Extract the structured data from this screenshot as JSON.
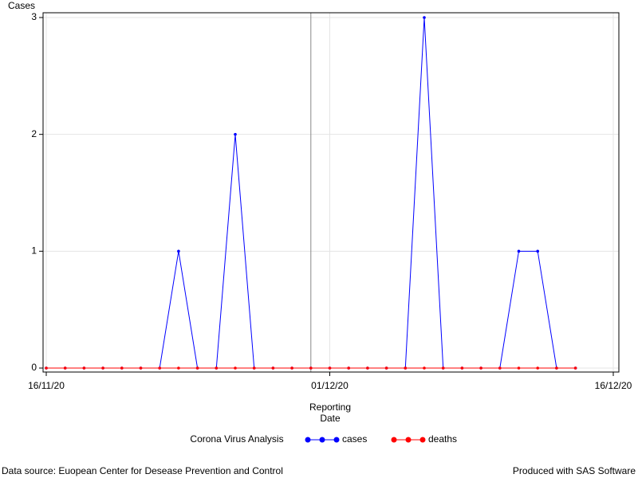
{
  "chart_data": {
    "type": "line",
    "y_label": "Cases",
    "x_label": [
      "Reporting",
      "Date"
    ],
    "x": [
      "16/11/20",
      "17/11/20",
      "18/11/20",
      "19/11/20",
      "20/11/20",
      "21/11/20",
      "22/11/20",
      "23/11/20",
      "24/11/20",
      "25/11/20",
      "26/11/20",
      "27/11/20",
      "28/11/20",
      "29/11/20",
      "30/11/20",
      "01/12/20",
      "02/12/20",
      "03/12/20",
      "04/12/20",
      "05/12/20",
      "06/12/20",
      "07/12/20",
      "08/12/20",
      "09/12/20",
      "10/12/20",
      "11/12/20",
      "12/12/20",
      "13/12/20",
      "14/12/20"
    ],
    "series": [
      {
        "name": "cases",
        "color": "#0000ff",
        "values": [
          0,
          0,
          0,
          0,
          0,
          0,
          0,
          1,
          0,
          0,
          2,
          0,
          0,
          0,
          0,
          0,
          0,
          0,
          0,
          0,
          3,
          0,
          0,
          0,
          0,
          1,
          1,
          0,
          0
        ]
      },
      {
        "name": "deaths",
        "color": "#ff0000",
        "values": [
          0,
          0,
          0,
          0,
          0,
          0,
          0,
          0,
          0,
          0,
          0,
          0,
          0,
          0,
          0,
          0,
          0,
          0,
          0,
          0,
          0,
          0,
          0,
          0,
          0,
          0,
          0,
          0,
          0
        ]
      }
    ],
    "xlim": [
      "16/11/20",
      "16/12/20"
    ],
    "xticks": [
      "16/11/20",
      "01/12/20",
      "16/12/20"
    ],
    "ylim": [
      0,
      3
    ],
    "yticks": [
      0,
      1,
      2,
      3
    ],
    "reference_x": "30/11/20",
    "grid": true,
    "legend_title": "Corona Virus Analysis",
    "footnote_left": "Data source: Euopean Center for Desease Prevention and Control",
    "footnote_right": "Produced with SAS Software"
  }
}
